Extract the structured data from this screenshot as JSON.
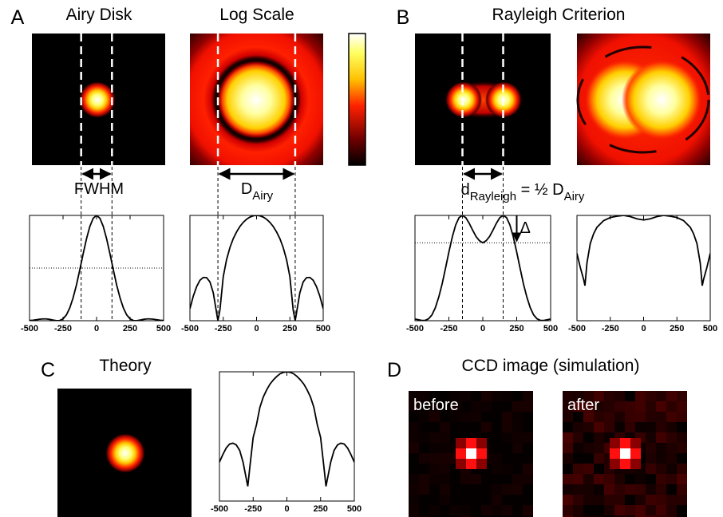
{
  "chart_data": [
    {
      "type": "line",
      "panel": "A",
      "title": "Airy Disk",
      "annotation": {
        "parts": [
          {
            "text": "FWHM"
          }
        ]
      },
      "x": [
        -500,
        -475,
        -450,
        -425,
        -400,
        -375,
        -350,
        -325,
        -300,
        -275,
        -250,
        -225,
        -200,
        -175,
        -150,
        -125,
        -100,
        -75,
        -50,
        -25,
        0,
        25,
        50,
        75,
        100,
        125,
        150,
        175,
        200,
        225,
        250,
        275,
        300,
        325,
        350,
        375,
        400,
        425,
        450,
        475,
        500
      ],
      "values": [
        0.0022,
        0.005,
        0.0093,
        0.0142,
        0.0171,
        0.0169,
        0.0128,
        0.0063,
        0.0007,
        0.002,
        0.0179,
        0.0551,
        0.121,
        0.218,
        0.339,
        0.484,
        0.635,
        0.778,
        0.896,
        0.973,
        1,
        0.973,
        0.896,
        0.778,
        0.635,
        0.484,
        0.339,
        0.218,
        0.121,
        0.0551,
        0.0179,
        0.002,
        0.0007,
        0.0063,
        0.0128,
        0.0169,
        0.0171,
        0.0142,
        0.0093,
        0.005,
        0.0022
      ],
      "xlim": [
        -500,
        500
      ],
      "xticks": [
        -500,
        -250,
        0,
        250,
        500
      ],
      "ylim": [
        0,
        1
      ],
      "log_y": false,
      "color": "#000000",
      "vlines": [
        -115,
        115
      ],
      "hline": 0.5
    },
    {
      "type": "line",
      "title": "Log Scale",
      "annotation": {
        "parts": [
          {
            "text": "D"
          },
          {
            "text": "Airy",
            "sub": true
          }
        ]
      },
      "x": [
        -500,
        -475,
        -450,
        -425,
        -400,
        -375,
        -350,
        -325,
        -290,
        -275,
        -250,
        -225,
        -200,
        -175,
        -150,
        -125,
        -100,
        -75,
        -50,
        -25,
        0,
        25,
        50,
        75,
        100,
        125,
        150,
        175,
        200,
        225,
        250,
        275,
        290,
        325,
        350,
        375,
        400,
        425,
        450,
        475,
        500
      ],
      "values": [
        0.0022,
        0.005,
        0.0093,
        0.0142,
        0.0171,
        0.0169,
        0.0128,
        0.0063,
        0.001,
        0.002,
        0.0179,
        0.0551,
        0.121,
        0.218,
        0.339,
        0.484,
        0.635,
        0.778,
        0.896,
        0.973,
        1,
        0.973,
        0.896,
        0.778,
        0.635,
        0.484,
        0.339,
        0.218,
        0.121,
        0.0551,
        0.0179,
        0.002,
        0.001,
        0.0063,
        0.0128,
        0.0169,
        0.0171,
        0.0142,
        0.0093,
        0.005,
        0.0022
      ],
      "xlim": [
        -500,
        500
      ],
      "xticks": [
        -500,
        -250,
        0,
        250,
        500
      ],
      "ylim": [
        0.001,
        1
      ],
      "log_y": true,
      "color": "#000000",
      "vlines": [
        -290,
        290
      ]
    },
    {
      "type": "line",
      "panel": "B",
      "title": "Rayleigh Criterion",
      "annotation": {
        "parts": [
          {
            "text": "d"
          },
          {
            "text": "Rayleigh",
            "sub": true
          },
          {
            "text": " = ½ D"
          },
          {
            "text": "Airy",
            "sub": true
          }
        ]
      },
      "delta_label": "Δ",
      "x": [
        -500,
        -475,
        -450,
        -425,
        -400,
        -375,
        -350,
        -325,
        -300,
        -275,
        -250,
        -225,
        -200,
        -175,
        -150,
        -125,
        -100,
        -75,
        -50,
        -25,
        0,
        25,
        50,
        75,
        100,
        125,
        150,
        175,
        200,
        225,
        250,
        275,
        300,
        325,
        350,
        375,
        400,
        425,
        450,
        475,
        500
      ],
      "values": [
        0.0163,
        0.0091,
        0.0025,
        0.0029,
        0.0181,
        0.0551,
        0.123,
        0.223,
        0.348,
        0.498,
        0.652,
        0.795,
        0.909,
        0.979,
        1,
        0.978,
        0.925,
        0.86,
        0.8,
        0.76,
        0.74,
        0.76,
        0.8,
        0.86,
        0.925,
        0.978,
        1,
        0.979,
        0.909,
        0.795,
        0.652,
        0.498,
        0.348,
        0.223,
        0.123,
        0.0551,
        0.0181,
        0.0029,
        0.0025,
        0.0091,
        0.0163
      ],
      "xlim": [
        -500,
        500
      ],
      "xticks": [
        -500,
        -250,
        0,
        250,
        500
      ],
      "ylim": [
        0,
        1
      ],
      "log_y": false,
      "color": "#000000",
      "vlines": [
        -150,
        150
      ],
      "hline": 0.74
    },
    {
      "type": "line",
      "x": [
        -500,
        -475,
        -450,
        -440,
        -425,
        -400,
        -375,
        -350,
        -300,
        -250,
        -200,
        -150,
        -100,
        -50,
        0,
        50,
        100,
        150,
        200,
        250,
        300,
        350,
        375,
        400,
        425,
        440,
        450,
        475,
        500
      ],
      "values": [
        0.083,
        0.033,
        0.015,
        0.01,
        0.044,
        0.16,
        0.3,
        0.46,
        0.71,
        0.87,
        0.95,
        1,
        0.925,
        0.8,
        0.74,
        0.8,
        0.925,
        1,
        0.95,
        0.87,
        0.71,
        0.46,
        0.3,
        0.16,
        0.044,
        0.01,
        0.015,
        0.033,
        0.083
      ],
      "xlim": [
        -500,
        500
      ],
      "xticks": [
        -500,
        -250,
        0,
        250,
        500
      ],
      "ylim": [
        0.001,
        1
      ],
      "log_y": true,
      "color": "#000000"
    },
    {
      "type": "line",
      "panel": "C",
      "title": "Theory",
      "x": [
        -500,
        -475,
        -450,
        -425,
        -400,
        -375,
        -350,
        -325,
        -290,
        -275,
        -250,
        -225,
        -200,
        -175,
        -150,
        -125,
        -100,
        -75,
        -50,
        -25,
        0,
        25,
        50,
        75,
        100,
        125,
        150,
        175,
        200,
        225,
        250,
        275,
        290,
        325,
        350,
        375,
        400,
        425,
        450,
        475,
        500
      ],
      "values": [
        0.008,
        0.012,
        0.017,
        0.021,
        0.022,
        0.02,
        0.015,
        0.008,
        0.0022,
        0.006,
        0.03,
        0.06,
        0.15,
        0.26,
        0.38,
        0.52,
        0.65,
        0.78,
        0.9,
        0.97,
        1,
        0.97,
        0.9,
        0.78,
        0.65,
        0.52,
        0.38,
        0.26,
        0.15,
        0.06,
        0.03,
        0.006,
        0.0022,
        0.008,
        0.015,
        0.02,
        0.022,
        0.021,
        0.017,
        0.012,
        0.008
      ],
      "xlim": [
        -500,
        500
      ],
      "xticks": [
        -500,
        -250,
        0,
        250,
        500
      ],
      "ylim": [
        0.001,
        1
      ],
      "log_y": true,
      "color": "#000000"
    }
  ],
  "panel_d": {
    "panel": "D",
    "title": "CCD image (simulation)",
    "images": [
      "before",
      "after"
    ]
  }
}
